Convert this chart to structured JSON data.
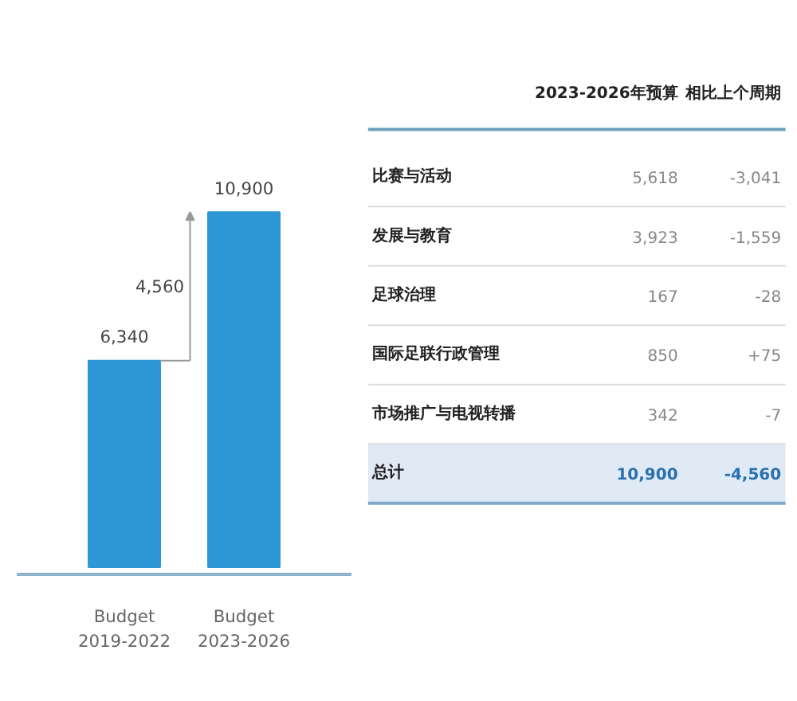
{
  "chart_data": [
    {
      "type": "bar",
      "categories": [
        "Budget\n2019-2022",
        "Budget\n2023-2026"
      ],
      "values": [
        6340,
        10900
      ],
      "color": "#2e97d6",
      "value_labels": [
        "6,340",
        "10,900"
      ],
      "annotations": [
        "4,560"
      ]
    },
    {
      "type": "other",
      "categories": [
        "比赛与活动",
        "发展与教育",
        "足球治理",
        "国际足联行政管理",
        "市场推广与电视转播",
        "总计"
      ],
      "series": [
        {
          "name": "2023-2026年预算",
          "values": [
            5618,
            3923,
            167,
            850,
            342,
            10900
          ],
          "value_labels": [
            "5,618",
            "3,923",
            "167",
            "850",
            "342",
            "10,900"
          ]
        },
        {
          "name": "相比上个周期",
          "values": [
            -3041,
            -1559,
            -28,
            75,
            -7,
            -4560
          ],
          "value_labels": [
            "-3,041",
            "-1,559",
            "-28",
            "+75",
            "-7",
            "-4,560"
          ]
        }
      ]
    }
  ]
}
